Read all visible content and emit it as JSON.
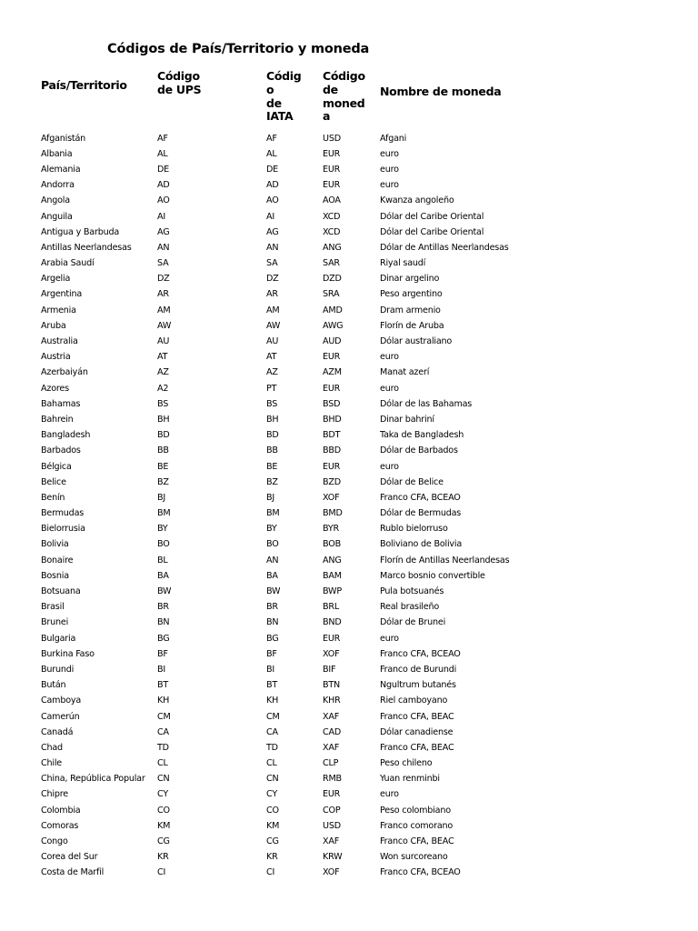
{
  "document": {
    "title": "Códigos de País/Territorio y moneda",
    "headers": [
      {
        "lines": [
          "País/Territorio"
        ]
      },
      {
        "lines": [
          "Código",
          "de UPS"
        ]
      },
      {
        "lines": [
          "Códig",
          "o",
          "de",
          "IATA"
        ]
      },
      {
        "lines": [
          "Código",
          "de",
          "moned",
          "a"
        ]
      },
      {
        "lines": [
          "Nombre de moneda"
        ]
      }
    ],
    "rows": [
      [
        "Afganistán",
        "AF",
        "AF",
        "USD",
        "Afgani"
      ],
      [
        "Albania",
        "AL",
        "AL",
        "EUR",
        "euro"
      ],
      [
        "Alemania",
        "DE",
        "DE",
        "EUR",
        "euro"
      ],
      [
        "Andorra",
        "AD",
        "AD",
        "EUR",
        "euro"
      ],
      [
        "Angola",
        "AO",
        "AO",
        "AOA",
        "Kwanza angoleño"
      ],
      [
        "Anguila",
        "AI",
        "AI",
        "XCD",
        "Dólar del Caribe Oriental"
      ],
      [
        "Antigua y Barbuda",
        "AG",
        "AG",
        "XCD",
        "Dólar del Caribe Oriental"
      ],
      [
        "Antillas Neerlandesas",
        "AN",
        "AN",
        "ANG",
        "Dólar de Antillas Neerlandesas"
      ],
      [
        "Arabia Saudí",
        "SA",
        "SA",
        "SAR",
        "Riyal saudí"
      ],
      [
        "Argelia",
        "DZ",
        "DZ",
        "DZD",
        "Dinar argelino"
      ],
      [
        "Argentina",
        "AR",
        "AR",
        "SRA",
        "Peso argentino"
      ],
      [
        "Armenia",
        "AM",
        "AM",
        "AMD",
        "Dram armenio"
      ],
      [
        "Aruba",
        "AW",
        "AW",
        "AWG",
        "Florín de Aruba"
      ],
      [
        "Australia",
        "AU",
        "AU",
        "AUD",
        "Dólar australiano"
      ],
      [
        "Austria",
        "AT",
        "AT",
        "EUR",
        "euro"
      ],
      [
        "Azerbaiyán",
        "AZ",
        "AZ",
        "AZM",
        "Manat azerí"
      ],
      [
        "Azores",
        "A2",
        "PT",
        "EUR",
        "euro"
      ],
      [
        "Bahamas",
        "BS",
        "BS",
        "BSD",
        "Dólar de las Bahamas"
      ],
      [
        "Bahrein",
        "BH",
        "BH",
        "BHD",
        "Dinar bahriní"
      ],
      [
        "Bangladesh",
        "BD",
        "BD",
        "BDT",
        "Taka de Bangladesh"
      ],
      [
        "Barbados",
        "BB",
        "BB",
        "BBD",
        "Dólar de Barbados"
      ],
      [
        "Bélgica",
        "BE",
        "BE",
        "EUR",
        "euro"
      ],
      [
        "Belice",
        "BZ",
        "BZ",
        "BZD",
        "Dólar de Belice"
      ],
      [
        "Benín",
        "BJ",
        "BJ",
        "XOF",
        "Franco CFA, BCEAO"
      ],
      [
        "Bermudas",
        "BM",
        "BM",
        "BMD",
        "Dólar de Bermudas"
      ],
      [
        "Bielorrusia",
        "BY",
        "BY",
        "BYR",
        "Rublo bielorruso"
      ],
      [
        "Bolivia",
        "BO",
        "BO",
        "BOB",
        "Boliviano de Bolivia"
      ],
      [
        "Bonaire",
        "BL",
        "AN",
        "ANG",
        "Florín de Antillas Neerlandesas"
      ],
      [
        "Bosnia",
        "BA",
        "BA",
        "BAM",
        "Marco bosnio convertible"
      ],
      [
        "Botsuana",
        "BW",
        "BW",
        "BWP",
        "Pula botsuanés"
      ],
      [
        "Brasil",
        "BR",
        "BR",
        "BRL",
        "Real brasileño"
      ],
      [
        "Brunei",
        "BN",
        "BN",
        "BND",
        "Dólar de Brunei"
      ],
      [
        "Bulgaria",
        "BG",
        "BG",
        "EUR",
        "euro"
      ],
      [
        "Burkina Faso",
        "BF",
        "BF",
        "XOF",
        "Franco CFA, BCEAO"
      ],
      [
        "Burundi",
        "BI",
        "BI",
        "BIF",
        "Franco de Burundi"
      ],
      [
        "Bután",
        "BT",
        "BT",
        "BTN",
        "Ngultrum butanés"
      ],
      [
        "Camboya",
        "KH",
        "KH",
        "KHR",
        "Riel camboyano"
      ],
      [
        "Camerún",
        "CM",
        "CM",
        "XAF",
        "Franco CFA, BEAC"
      ],
      [
        "Canadá",
        "CA",
        "CA",
        "CAD",
        "Dólar canadiense"
      ],
      [
        "Chad",
        "TD",
        "TD",
        "XAF",
        "Franco CFA, BEAC"
      ],
      [
        "Chile",
        "CL",
        "CL",
        "CLP",
        "Peso chileno"
      ],
      [
        "China, República Popular",
        "CN",
        "CN",
        "RMB",
        "Yuan renminbi"
      ],
      [
        "Chipre",
        "CY",
        "CY",
        "EUR",
        "euro"
      ],
      [
        "Colombia",
        "CO",
        "CO",
        "COP",
        "Peso colombiano"
      ],
      [
        "Comoras",
        "KM",
        "KM",
        "USD",
        "Franco comorano"
      ],
      [
        "Congo",
        "CG",
        "CG",
        "XAF",
        "Franco CFA, BEAC"
      ],
      [
        "Corea del Sur",
        "KR",
        "KR",
        "KRW",
        "Won surcoreano"
      ],
      [
        "Costa de Marfil",
        "CI",
        "CI",
        "XOF",
        "Franco CFA, BCEAO"
      ]
    ]
  }
}
